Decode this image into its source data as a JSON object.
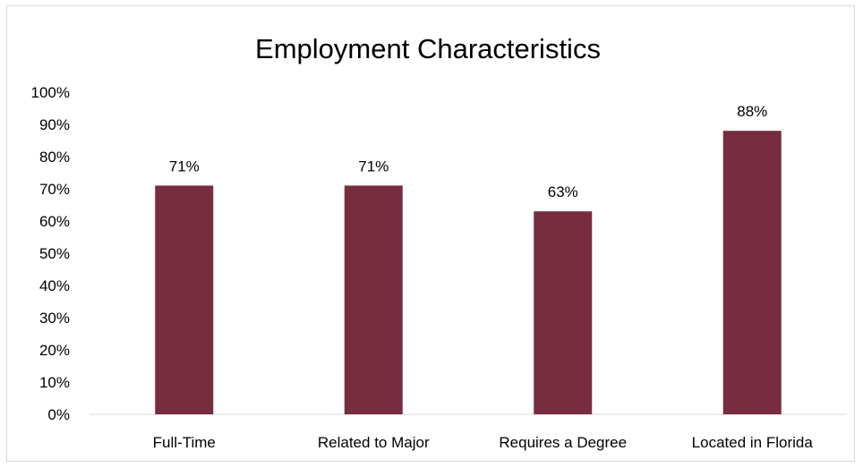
{
  "chart_data": {
    "type": "bar",
    "title": "Employment Characteristics",
    "categories": [
      "Full-Time",
      "Related to Major",
      "Requires a Degree",
      "Located in Florida"
    ],
    "values": [
      71,
      71,
      63,
      88
    ],
    "data_labels": [
      "71%",
      "71%",
      "63%",
      "88%"
    ],
    "ylim": [
      0,
      100
    ],
    "yticks": [
      0,
      10,
      20,
      30,
      40,
      50,
      60,
      70,
      80,
      90,
      100
    ],
    "ytick_labels": [
      "0%",
      "10%",
      "20%",
      "30%",
      "40%",
      "50%",
      "60%",
      "70%",
      "80%",
      "90%",
      "100%"
    ],
    "xlabel": "",
    "ylabel": "",
    "grid": false,
    "legend": "none",
    "bar_color": "#772d3f",
    "axis_color": "#d9d9d9"
  }
}
